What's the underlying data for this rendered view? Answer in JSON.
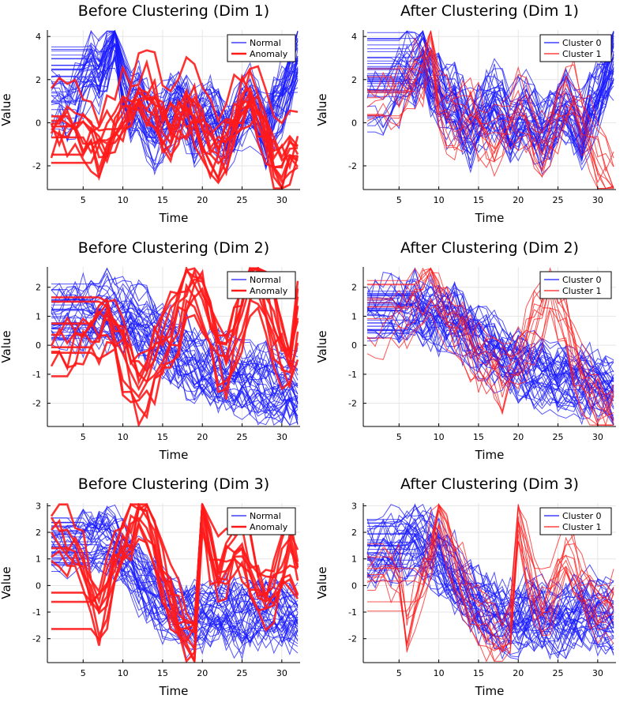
{
  "colors": {
    "normal": "#1a1aff",
    "anomaly": "#ff1a1a",
    "grid": "#e6e6e6",
    "axis": "#000000"
  },
  "chart_data": [
    {
      "type": "line",
      "title": "Before Clustering (Dim 1)",
      "xlabel": "Time",
      "ylabel": "Value",
      "xlim": [
        0.5,
        32.3
      ],
      "ylim": [
        -3.1,
        4.3
      ],
      "xticks": [
        5,
        10,
        15,
        20,
        25,
        30
      ],
      "yticks": [
        -2,
        0,
        2,
        4
      ],
      "grid": true,
      "legend_position": "top-right",
      "legend": [
        "Normal",
        "Anomaly"
      ],
      "series": [
        {
          "name": "Normal",
          "color": "#1a1aff",
          "count": 40,
          "values": [
            1.0,
            1.2,
            0.6,
            0.9,
            1.8,
            2.6,
            2.2,
            3.0,
            4.0,
            1.6,
            0.8,
            1.0,
            0.2,
            -0.4,
            0.0,
            0.6,
            1.0,
            0.5,
            -0.3,
            0.2,
            0.4,
            0.0,
            -0.6,
            -0.2,
            0.4,
            0.8,
            0.2,
            -0.5,
            0.6,
            1.2,
            2.0,
            3.1
          ]
        },
        {
          "name": "Anomaly",
          "color": "#ff1a1a",
          "count": 12,
          "values": [
            0.3,
            0.3,
            0.2,
            0.1,
            0.0,
            -0.3,
            -0.6,
            -0.4,
            0.2,
            0.8,
            1.2,
            1.6,
            1.8,
            1.4,
            0.6,
            0.2,
            0.6,
            1.2,
            0.8,
            0.0,
            -0.6,
            -1.0,
            -0.4,
            0.6,
            1.4,
            1.8,
            1.0,
            -0.2,
            -1.2,
            -1.6,
            -1.0,
            -0.8
          ]
        }
      ]
    },
    {
      "type": "line",
      "title": "After Clustering (Dim 1)",
      "xlabel": "Time",
      "ylabel": "Value",
      "xlim": [
        0.5,
        32.3
      ],
      "ylim": [
        -3.1,
        4.3
      ],
      "xticks": [
        5,
        10,
        15,
        20,
        25,
        30
      ],
      "yticks": [
        -2,
        0,
        2,
        4
      ],
      "grid": true,
      "legend_position": "top-right",
      "legend": [
        "Cluster 0",
        "Cluster 1"
      ],
      "series": [
        {
          "name": "Cluster 0",
          "color": "#1a1aff",
          "count": 42,
          "values": [
            1.0,
            1.2,
            0.6,
            0.9,
            1.8,
            2.6,
            2.2,
            3.0,
            2.0,
            1.6,
            0.8,
            1.0,
            0.2,
            -0.4,
            0.0,
            0.6,
            1.0,
            0.5,
            -0.3,
            0.2,
            0.4,
            0.0,
            -0.6,
            -0.2,
            0.4,
            0.8,
            0.2,
            -0.5,
            0.6,
            1.2,
            2.0,
            3.1
          ]
        },
        {
          "name": "Cluster 1",
          "color": "#ff1a1a",
          "count": 12,
          "values": [
            0.3,
            0.5,
            0.8,
            1.2,
            1.0,
            1.6,
            2.1,
            2.6,
            4.0,
            1.2,
            0.4,
            0.2,
            0.6,
            1.0,
            0.2,
            -0.4,
            -0.8,
            -0.2,
            0.4,
            0.8,
            0.2,
            -0.6,
            -1.2,
            -0.4,
            0.6,
            1.4,
            1.2,
            0.4,
            -0.6,
            -1.4,
            -2.0,
            -2.6
          ]
        }
      ]
    },
    {
      "type": "line",
      "title": "Before Clustering (Dim 2)",
      "xlabel": "Time",
      "ylabel": "Value",
      "xlim": [
        0.5,
        32.3
      ],
      "ylim": [
        -2.8,
        2.7
      ],
      "xticks": [
        5,
        10,
        15,
        20,
        25,
        30
      ],
      "yticks": [
        -2,
        -1,
        0,
        1,
        2
      ],
      "grid": true,
      "legend_position": "top-right",
      "legend": [
        "Normal",
        "Anomaly"
      ],
      "series": [
        {
          "name": "Normal",
          "color": "#1a1aff",
          "count": 40,
          "values": [
            0.9,
            0.95,
            1.0,
            1.05,
            1.1,
            1.15,
            1.2,
            1.15,
            1.1,
            1.0,
            0.9,
            0.8,
            0.6,
            0.4,
            0.2,
            0.0,
            -0.2,
            -0.4,
            -0.55,
            -0.7,
            -0.8,
            -0.9,
            -1.0,
            -1.1,
            -1.15,
            -1.2,
            -1.25,
            -1.3,
            -1.35,
            -1.4,
            -1.5,
            -1.6
          ]
        },
        {
          "name": "Anomaly",
          "color": "#ff1a1a",
          "count": 10,
          "values": [
            -0.5,
            -0.5,
            -0.4,
            -0.2,
            0.0,
            0.3,
            0.6,
            0.8,
            0.4,
            -0.3,
            -1.0,
            -1.6,
            -1.2,
            -0.6,
            -0.2,
            0.4,
            1.0,
            1.6,
            2.0,
            1.4,
            0.6,
            -0.2,
            -0.6,
            0.2,
            1.2,
            2.2,
            2.4,
            1.6,
            0.6,
            -0.2,
            -0.8,
            0.9
          ]
        }
      ]
    },
    {
      "type": "line",
      "title": "After Clustering (Dim 2)",
      "xlabel": "Time",
      "ylabel": "Value",
      "xlim": [
        0.5,
        32.3
      ],
      "ylim": [
        -2.8,
        2.7
      ],
      "xticks": [
        5,
        10,
        15,
        20,
        25,
        30
      ],
      "yticks": [
        -2,
        -1,
        0,
        1,
        2
      ],
      "grid": true,
      "legend_position": "top-right",
      "legend": [
        "Cluster 0",
        "Cluster 1"
      ],
      "series": [
        {
          "name": "Cluster 0",
          "color": "#1a1aff",
          "count": 42,
          "values": [
            0.9,
            0.95,
            1.0,
            1.05,
            1.1,
            1.15,
            1.2,
            1.15,
            1.1,
            1.0,
            0.9,
            0.8,
            0.6,
            0.4,
            0.2,
            0.0,
            -0.2,
            -0.4,
            -0.55,
            -0.7,
            -0.8,
            -0.9,
            -1.0,
            -1.1,
            -1.15,
            -1.2,
            -1.25,
            -1.3,
            -1.35,
            -1.4,
            -1.5,
            -1.6
          ]
        },
        {
          "name": "Cluster 1",
          "color": "#ff1a1a",
          "count": 12,
          "values": [
            0.3,
            0.4,
            0.5,
            0.7,
            0.9,
            1.1,
            1.4,
            1.8,
            2.2,
            1.6,
            1.0,
            0.6,
            0.2,
            -0.2,
            -0.6,
            -0.8,
            -1.0,
            -1.2,
            -1.0,
            -0.6,
            0.0,
            0.6,
            1.2,
            1.8,
            1.2,
            0.4,
            -0.4,
            -1.2,
            -1.8,
            -2.2,
            -2.5,
            -2.6
          ]
        }
      ]
    },
    {
      "type": "line",
      "title": "Before Clustering (Dim 3)",
      "xlabel": "Time",
      "ylabel": "Value",
      "xlim": [
        0.5,
        32.3
      ],
      "ylim": [
        -2.9,
        3.1
      ],
      "xticks": [
        5,
        10,
        15,
        20,
        25,
        30
      ],
      "yticks": [
        -2,
        -1,
        0,
        1,
        2,
        3
      ],
      "grid": true,
      "legend_position": "top-right",
      "legend": [
        "Normal",
        "Anomaly"
      ],
      "series": [
        {
          "name": "Normal",
          "color": "#1a1aff",
          "count": 40,
          "values": [
            1.2,
            1.3,
            1.4,
            1.5,
            1.6,
            1.7,
            1.8,
            1.7,
            1.5,
            1.2,
            0.8,
            0.4,
            0.0,
            -0.3,
            -0.6,
            -0.8,
            -1.0,
            -1.1,
            -1.2,
            -1.1,
            -1.0,
            -0.9,
            -1.0,
            -1.1,
            -1.2,
            -1.1,
            -1.0,
            -0.9,
            -0.9,
            -1.0,
            -1.1,
            -1.2
          ]
        },
        {
          "name": "Anomaly",
          "color": "#ff1a1a",
          "count": 10,
          "values": [
            1.9,
            1.9,
            1.6,
            1.2,
            0.6,
            -0.2,
            -1.0,
            -0.4,
            0.6,
            1.4,
            2.0,
            2.5,
            2.4,
            1.6,
            0.6,
            -0.4,
            -1.2,
            -2.0,
            -2.1,
            2.8,
            1.2,
            0.4,
            0.6,
            1.2,
            1.4,
            0.8,
            0.0,
            -0.6,
            -0.2,
            0.6,
            1.2,
            0.3
          ]
        }
      ]
    },
    {
      "type": "line",
      "title": "After Clustering (Dim 3)",
      "xlabel": "Time",
      "ylabel": "Value",
      "xlim": [
        0.5,
        32.3
      ],
      "ylim": [
        -2.9,
        3.1
      ],
      "xticks": [
        5,
        10,
        15,
        20,
        25,
        30
      ],
      "yticks": [
        -2,
        -1,
        0,
        1,
        2,
        3
      ],
      "grid": true,
      "legend_position": "top-right",
      "legend": [
        "Cluster 0",
        "Cluster 1"
      ],
      "series": [
        {
          "name": "Cluster 0",
          "color": "#1a1aff",
          "count": 42,
          "values": [
            1.2,
            1.3,
            1.4,
            1.5,
            1.6,
            1.7,
            1.8,
            1.7,
            1.5,
            1.2,
            0.8,
            0.4,
            0.0,
            -0.3,
            -0.6,
            -0.8,
            -1.0,
            -1.1,
            -1.2,
            -1.1,
            -1.0,
            -0.9,
            -1.0,
            -1.1,
            -1.2,
            -1.1,
            -1.0,
            -0.9,
            -0.9,
            -1.0,
            -1.1,
            -1.2
          ]
        },
        {
          "name": "Cluster 1",
          "color": "#ff1a1a",
          "count": 12,
          "values": [
            0.4,
            0.6,
            0.8,
            1.0,
            0.4,
            -1.9,
            -0.8,
            0.4,
            1.6,
            2.9,
            2.0,
            1.2,
            0.4,
            -0.4,
            -1.0,
            -1.4,
            -1.8,
            -2.0,
            -1.4,
            2.7,
            1.2,
            0.0,
            -0.6,
            -0.2,
            0.6,
            1.2,
            0.8,
            0.2,
            -0.4,
            -0.8,
            -0.6,
            -0.6
          ]
        }
      ]
    }
  ]
}
